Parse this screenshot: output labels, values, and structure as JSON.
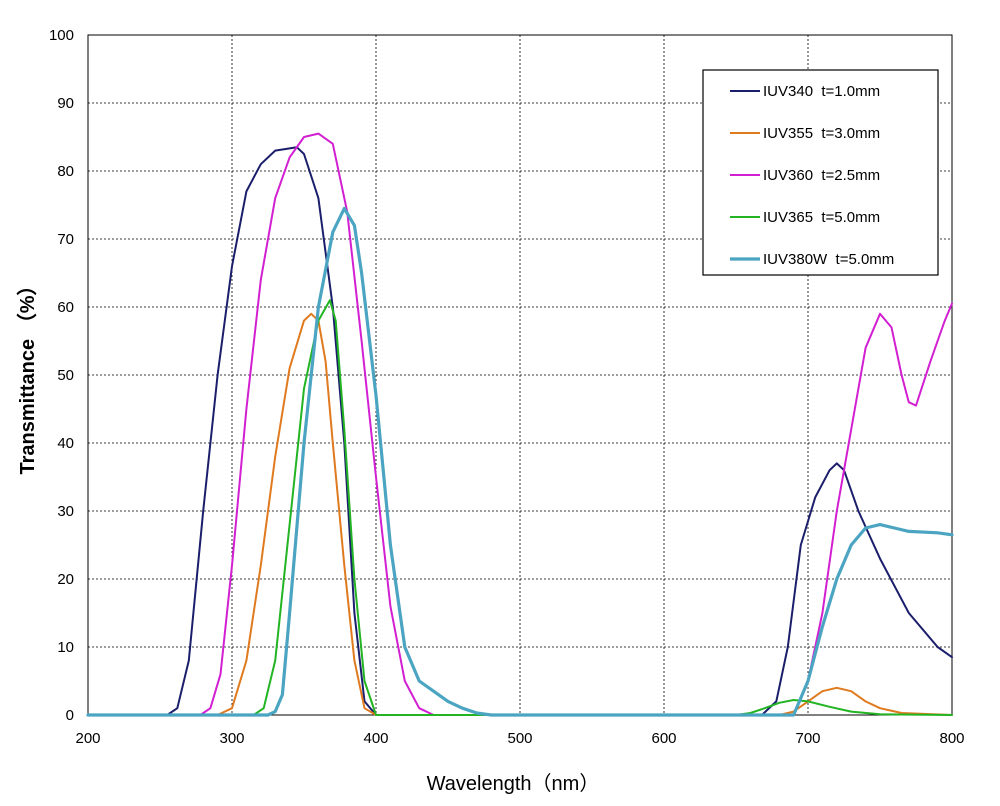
{
  "chart_data": {
    "type": "line",
    "xlabel": "Wavelength（nm）",
    "ylabel": "Transmittance （%）",
    "xlim": [
      200,
      800
    ],
    "ylim": [
      0,
      100
    ],
    "x_ticks": [
      200,
      300,
      400,
      500,
      600,
      700,
      800
    ],
    "y_ticks": [
      0,
      10,
      20,
      30,
      40,
      50,
      60,
      70,
      80,
      90,
      100
    ],
    "grid": true,
    "legend_position": "top-right",
    "series": [
      {
        "name": "IUV340  t=1.0mm",
        "color": "#1b1f6b",
        "points": [
          [
            200,
            0
          ],
          [
            255,
            0
          ],
          [
            262,
            1
          ],
          [
            270,
            8
          ],
          [
            280,
            30
          ],
          [
            290,
            50
          ],
          [
            300,
            66
          ],
          [
            310,
            77
          ],
          [
            320,
            81
          ],
          [
            330,
            83
          ],
          [
            345,
            83.5
          ],
          [
            350,
            82.5
          ],
          [
            360,
            76
          ],
          [
            370,
            60
          ],
          [
            378,
            40
          ],
          [
            385,
            15
          ],
          [
            392,
            2
          ],
          [
            400,
            0
          ],
          [
            650,
            0
          ],
          [
            668,
            0
          ],
          [
            678,
            2
          ],
          [
            686,
            10
          ],
          [
            695,
            25
          ],
          [
            705,
            32
          ],
          [
            715,
            36
          ],
          [
            720,
            37
          ],
          [
            725,
            36
          ],
          [
            735,
            30
          ],
          [
            750,
            23
          ],
          [
            770,
            15
          ],
          [
            790,
            10
          ],
          [
            800,
            8.5
          ]
        ]
      },
      {
        "name": "IUV355  t=3.0mm",
        "color": "#e07a1f",
        "points": [
          [
            200,
            0
          ],
          [
            290,
            0
          ],
          [
            300,
            1
          ],
          [
            310,
            8
          ],
          [
            320,
            22
          ],
          [
            330,
            38
          ],
          [
            340,
            51
          ],
          [
            350,
            58
          ],
          [
            355,
            59
          ],
          [
            360,
            58
          ],
          [
            365,
            52
          ],
          [
            370,
            40
          ],
          [
            378,
            22
          ],
          [
            385,
            8
          ],
          [
            392,
            1
          ],
          [
            400,
            0
          ],
          [
            680,
            0
          ],
          [
            690,
            0.5
          ],
          [
            700,
            2
          ],
          [
            710,
            3.5
          ],
          [
            720,
            4
          ],
          [
            730,
            3.5
          ],
          [
            740,
            2
          ],
          [
            750,
            1
          ],
          [
            765,
            0.3
          ],
          [
            800,
            0
          ]
        ]
      },
      {
        "name": "IUV360  t=2.5mm",
        "color": "#d21fd2",
        "points": [
          [
            200,
            0
          ],
          [
            278,
            0
          ],
          [
            285,
            1
          ],
          [
            292,
            6
          ],
          [
            300,
            22
          ],
          [
            310,
            45
          ],
          [
            320,
            64
          ],
          [
            330,
            76
          ],
          [
            340,
            82
          ],
          [
            350,
            85
          ],
          [
            360,
            85.5
          ],
          [
            370,
            84
          ],
          [
            380,
            74
          ],
          [
            390,
            55
          ],
          [
            400,
            35
          ],
          [
            410,
            16
          ],
          [
            420,
            5
          ],
          [
            430,
            1
          ],
          [
            440,
            0
          ],
          [
            680,
            0
          ],
          [
            690,
            0
          ],
          [
            700,
            5
          ],
          [
            710,
            15
          ],
          [
            720,
            30
          ],
          [
            730,
            42
          ],
          [
            740,
            54
          ],
          [
            750,
            59
          ],
          [
            758,
            57
          ],
          [
            765,
            50
          ],
          [
            770,
            46
          ],
          [
            775,
            45.5
          ],
          [
            785,
            52
          ],
          [
            795,
            58
          ],
          [
            800,
            60.5
          ]
        ]
      },
      {
        "name": "IUV365  t=5.0mm",
        "color": "#22b422",
        "points": [
          [
            200,
            0
          ],
          [
            315,
            0
          ],
          [
            322,
            1
          ],
          [
            330,
            8
          ],
          [
            340,
            28
          ],
          [
            350,
            48
          ],
          [
            360,
            58
          ],
          [
            368,
            61
          ],
          [
            372,
            58
          ],
          [
            378,
            42
          ],
          [
            385,
            20
          ],
          [
            392,
            5
          ],
          [
            400,
            0
          ],
          [
            650,
            0
          ],
          [
            660,
            0.3
          ],
          [
            670,
            1
          ],
          [
            680,
            1.8
          ],
          [
            690,
            2.2
          ],
          [
            700,
            2
          ],
          [
            715,
            1.2
          ],
          [
            730,
            0.5
          ],
          [
            750,
            0.1
          ],
          [
            800,
            0
          ]
        ]
      },
      {
        "name": "IUV380W  t=5.0mm",
        "color": "#4ba5c2",
        "points": [
          [
            200,
            0
          ],
          [
            325,
            0
          ],
          [
            330,
            0.5
          ],
          [
            335,
            3
          ],
          [
            340,
            15
          ],
          [
            350,
            40
          ],
          [
            360,
            60
          ],
          [
            370,
            71
          ],
          [
            378,
            74.5
          ],
          [
            385,
            72
          ],
          [
            390,
            65
          ],
          [
            400,
            47
          ],
          [
            410,
            25
          ],
          [
            420,
            10
          ],
          [
            430,
            5
          ],
          [
            440,
            3.5
          ],
          [
            450,
            2
          ],
          [
            460,
            1
          ],
          [
            470,
            0.3
          ],
          [
            480,
            0
          ],
          [
            690,
            0
          ],
          [
            700,
            5
          ],
          [
            710,
            13
          ],
          [
            720,
            20
          ],
          [
            730,
            25
          ],
          [
            740,
            27.5
          ],
          [
            750,
            28
          ],
          [
            760,
            27.5
          ],
          [
            770,
            27
          ],
          [
            790,
            26.8
          ],
          [
            800,
            26.5
          ]
        ]
      }
    ]
  }
}
